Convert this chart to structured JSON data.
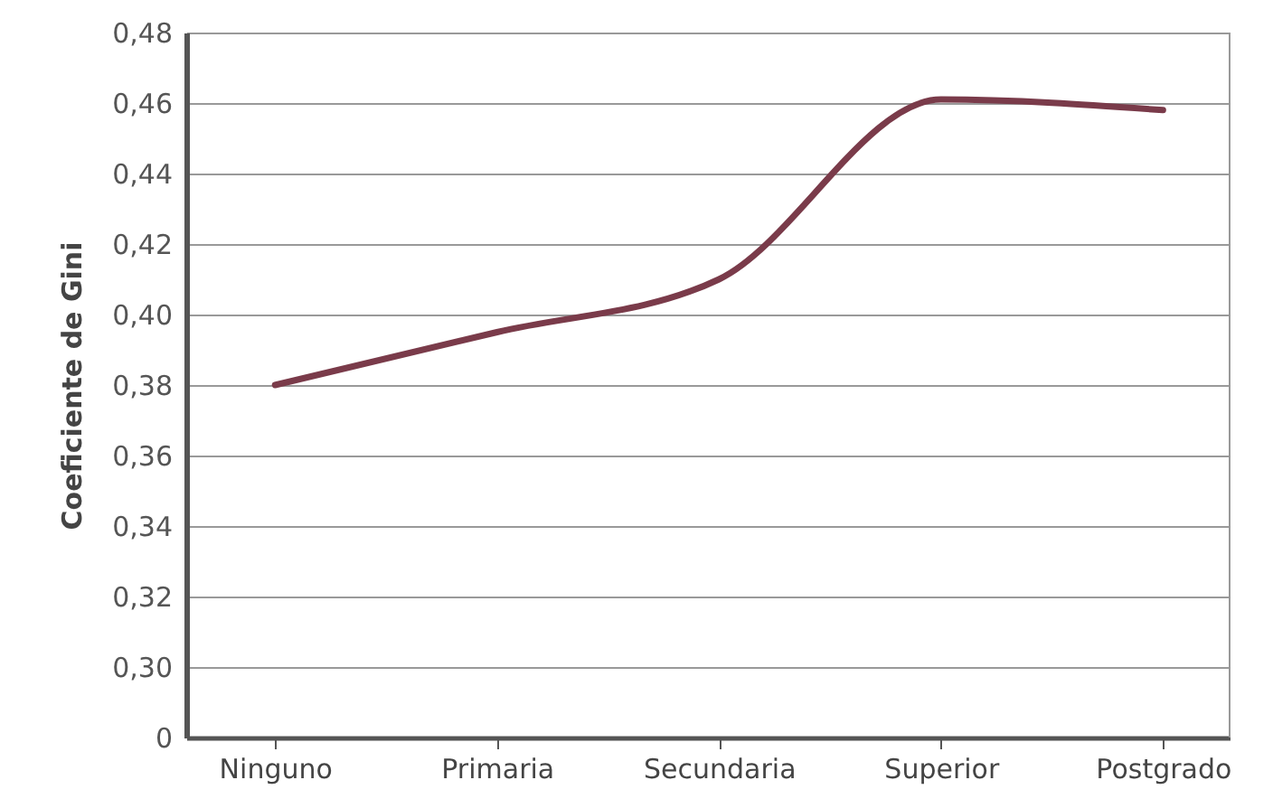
{
  "chart_data": {
    "type": "line",
    "ylabel": "Coeficiente de Gini",
    "categories": [
      "Ninguno",
      "Primaria",
      "Secundaria",
      "Superior",
      "Postgrado"
    ],
    "series": [
      {
        "color": "#7a3b4a",
        "values": [
          0.38,
          0.395,
          0.41,
          0.461,
          0.458
        ]
      }
    ],
    "ylim": [
      0.28,
      0.48
    ],
    "yticks": [
      {
        "value": 0.28,
        "label": "0"
      },
      {
        "value": 0.3,
        "label": "0,30"
      },
      {
        "value": 0.32,
        "label": "0,32"
      },
      {
        "value": 0.34,
        "label": "0,34"
      },
      {
        "value": 0.36,
        "label": "0,36"
      },
      {
        "value": 0.38,
        "label": "0,38"
      },
      {
        "value": 0.4,
        "label": "0,40"
      },
      {
        "value": 0.42,
        "label": "0,42"
      },
      {
        "value": 0.44,
        "label": "0,44"
      },
      {
        "value": 0.46,
        "label": "0,46"
      },
      {
        "value": 0.48,
        "label": "0,48"
      }
    ],
    "grid": "y",
    "marker": "none",
    "line_style": "solid"
  }
}
